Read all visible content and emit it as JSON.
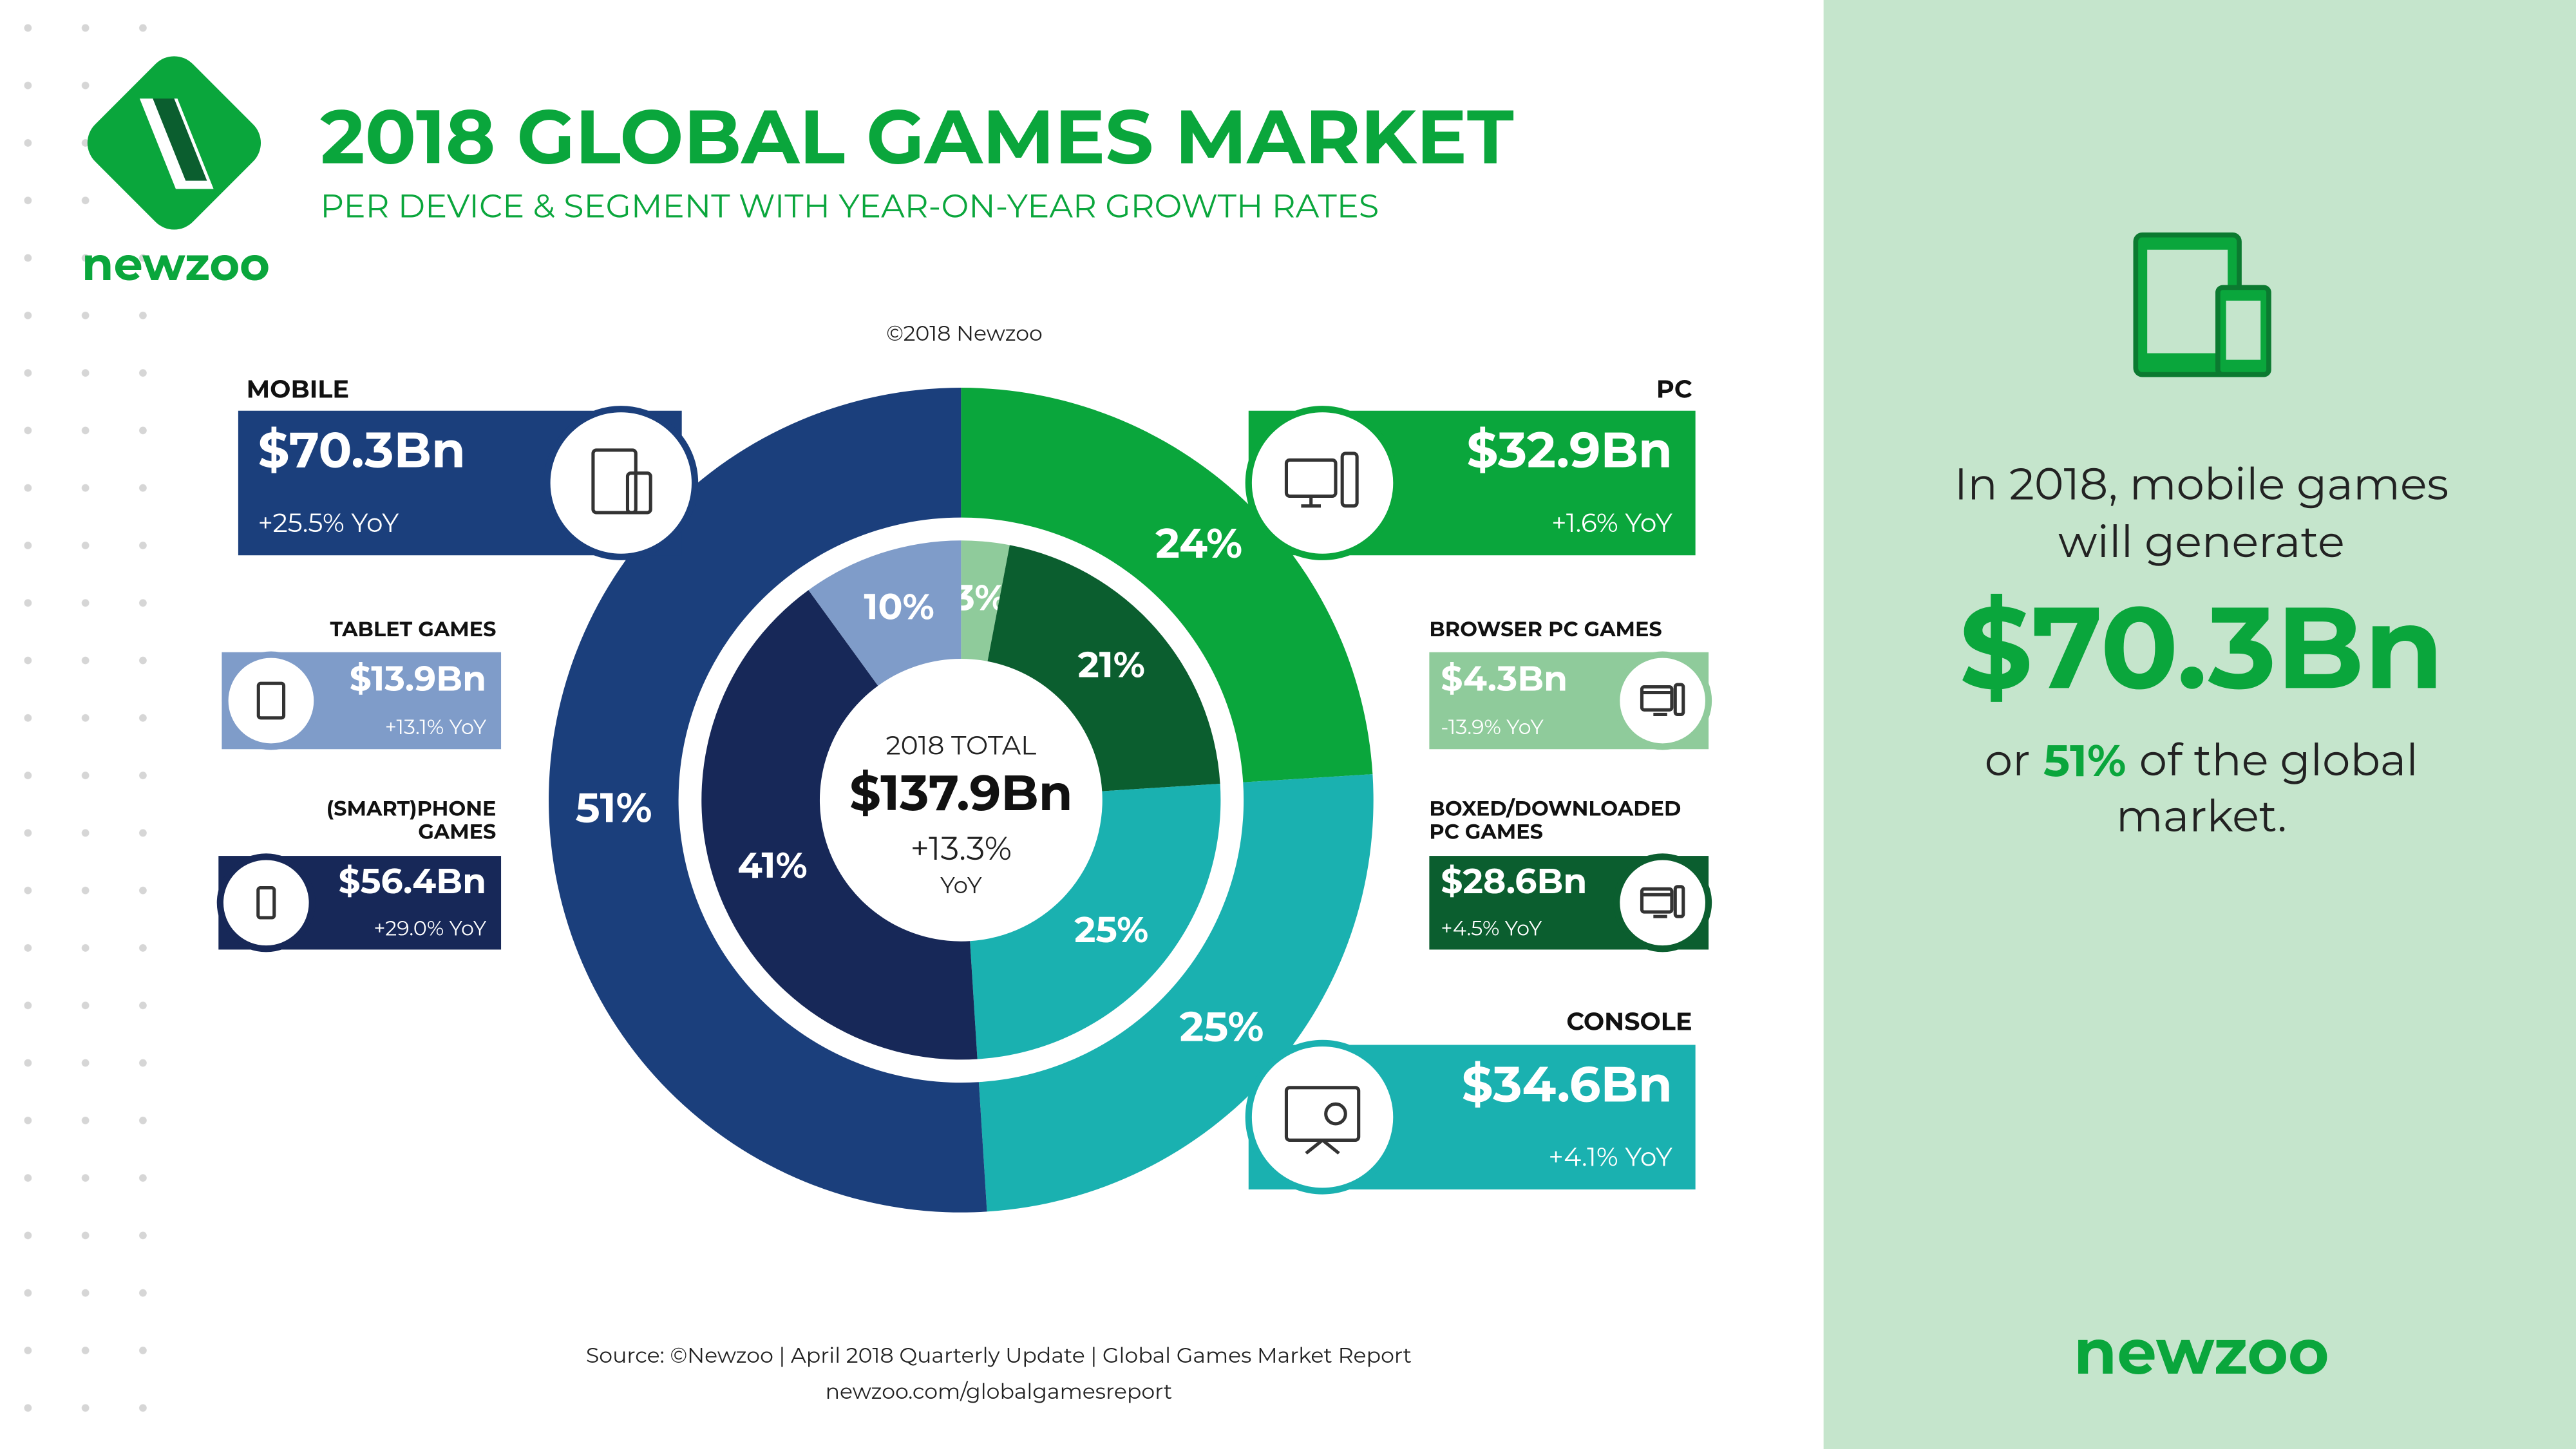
{
  "chart_data": {
    "type": "donut",
    "title": "2018 GLOBAL GAMES MARKET",
    "subtitle": "PER DEVICE & SEGMENT WITH YEAR-ON-YEAR GROWTH RATES",
    "copyright": "©2018 Newzoo",
    "brand": "newzoo",
    "center": {
      "label": "2018 TOTAL",
      "value": "$137.9Bn",
      "growth": "+13.3%",
      "unit": "YoY"
    },
    "rings": [
      {
        "categories": [
          "PC",
          "CONSOLE",
          "MOBILE"
        ],
        "values": [
          24,
          25,
          51
        ],
        "value_labels": [
          "24%",
          "25%",
          "51%"
        ],
        "colors": [
          "#0aa63c",
          "#1ab1b0",
          "#1b3f7c"
        ],
        "revenues": [
          "$32.9Bn",
          "$34.6Bn",
          "$70.3Bn"
        ],
        "growth": [
          "+1.6% YoY",
          "+4.1% YoY",
          "+25.5% YoY"
        ]
      },
      {
        "categories": [
          "BROWSER PC GAMES",
          "BOXED/DOWNLOADED\nPC GAMES",
          null,
          "(SMART)PHONE\nGAMES",
          "TABLET GAMES"
        ],
        "values": [
          3,
          21,
          25,
          41,
          10
        ],
        "value_labels": [
          "3%",
          "21%",
          "25%",
          "41%",
          "10%"
        ],
        "colors": [
          "#8fcb9b",
          "#0b5e2f",
          "#1ab1b0",
          "#172858",
          "#7f9cc9"
        ],
        "revenues": [
          "$4.3Bn",
          "$28.6Bn",
          null,
          "$56.4Bn",
          "$13.9Bn"
        ],
        "growth": [
          "-13.9% YoY",
          "+4.5% YoY",
          null,
          "+29.0% YoY",
          "+13.1% YoY"
        ]
      }
    ],
    "source": "Source: ©Newzoo | April 2018 Quarterly Update | Global Games Market Report",
    "url": "newzoo.com/globalgamesreport"
  },
  "panel": {
    "intro": [
      "In 2018, mobile games",
      "will generate"
    ],
    "amount": "$70.3Bn",
    "share_prefix": "or",
    "share": "51%",
    "share_suffix": "of the global",
    "last_line": "market.",
    "brand": "newzoo"
  }
}
